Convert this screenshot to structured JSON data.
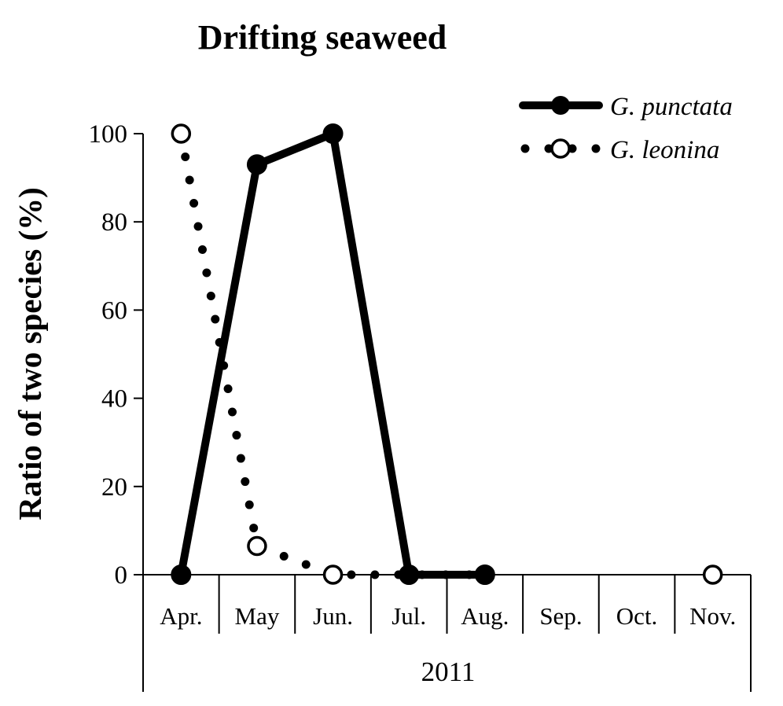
{
  "chart_data": {
    "type": "line",
    "title": "Drifting seaweed",
    "ylabel": "Ratio of two species (%)",
    "xlabel": "",
    "year_label": "2011",
    "categories": [
      "Apr.",
      "May",
      "Jun.",
      "Jul.",
      "Aug.",
      "Sep.",
      "Oct.",
      "Nov."
    ],
    "ylim": [
      0,
      100
    ],
    "yticks": [
      0,
      20,
      40,
      60,
      80,
      100
    ],
    "grid": false,
    "legend_position": "top-right",
    "series": [
      {
        "name": "G. punctata",
        "style": "solid",
        "marker": "filled-circle",
        "color": "#000000",
        "values": [
          0,
          93,
          100,
          0,
          0,
          null,
          null,
          null
        ]
      },
      {
        "name": "G. leonina",
        "style": "dotted",
        "marker": "open-circle",
        "color": "#000000",
        "values": [
          100,
          6.5,
          0,
          0,
          0,
          null,
          null,
          0
        ]
      }
    ]
  }
}
